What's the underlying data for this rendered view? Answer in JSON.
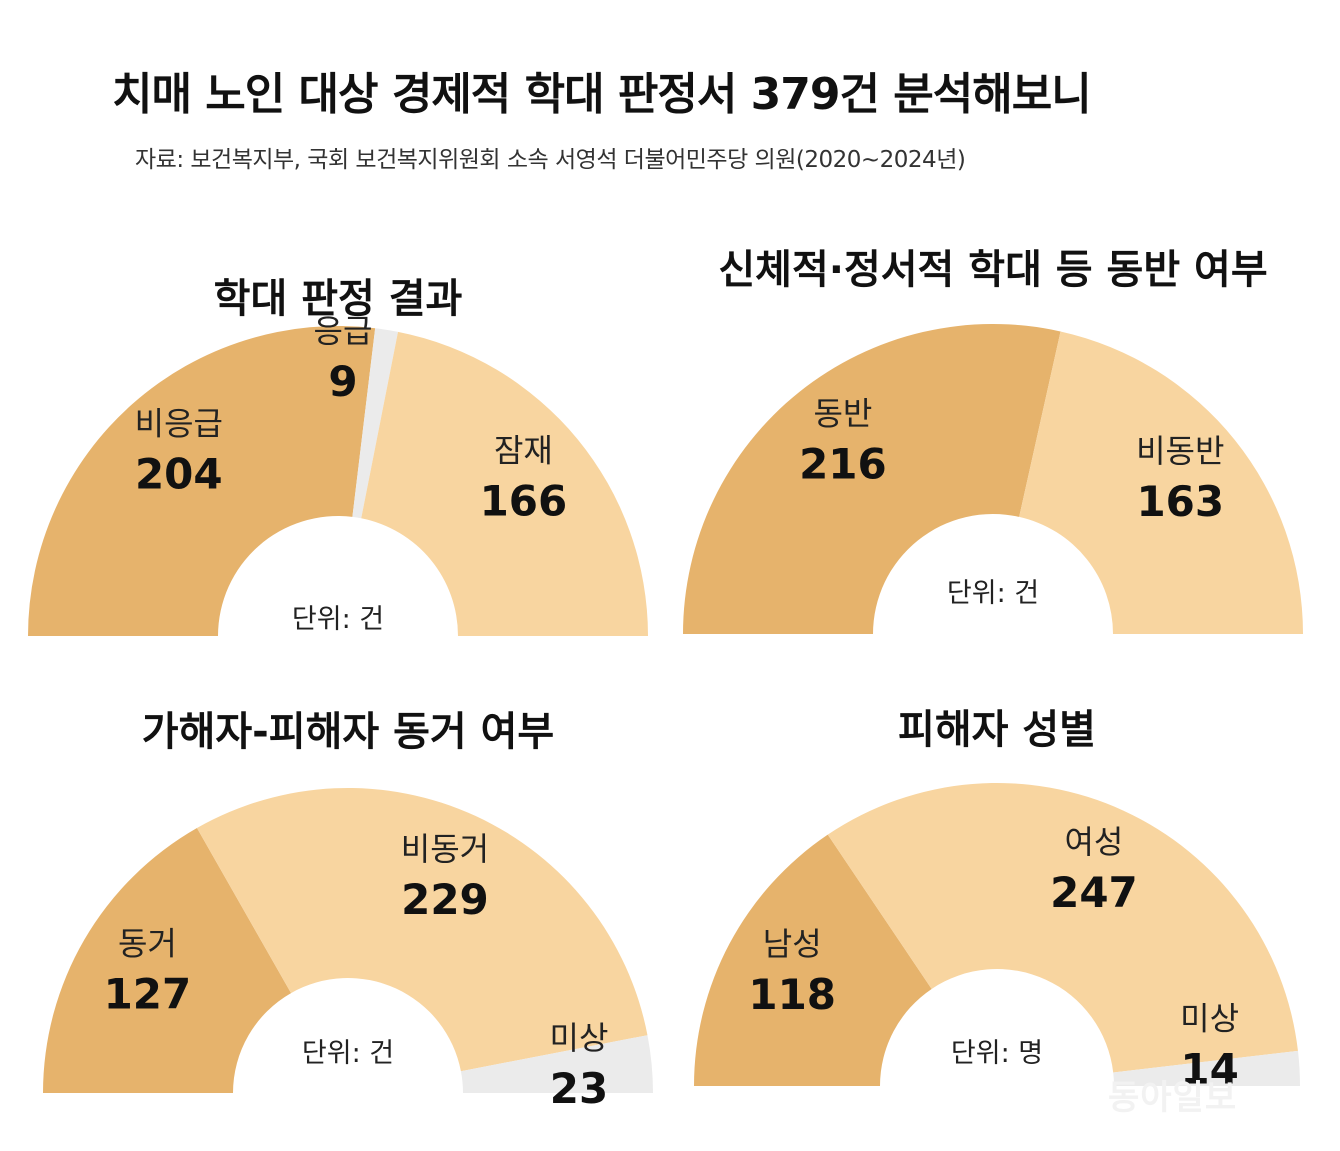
{
  "title": "치매 노인 대상 경제적 학대 판정서 379건 분석해보니",
  "source": "자료: 보건복지부, 국회 보건복지위원회 소속 서영석 더불어민주당 의원(2020∼2024년)",
  "watermark": "동아일보",
  "colors": {
    "dark": "#e6b36c",
    "light": "#f8d5a0",
    "gray": "#ebebeb"
  },
  "chart_data": [
    {
      "type": "pie",
      "title": "학대 판정 결과",
      "unit_label": "단위: 건",
      "slices": [
        {
          "label": "비응급",
          "value": 204,
          "color": "dark"
        },
        {
          "label": "응급",
          "value": 9,
          "color": "gray"
        },
        {
          "label": "잠재",
          "value": 166,
          "color": "light"
        }
      ]
    },
    {
      "type": "pie",
      "title": "신체적·정서적 학대 등 동반 여부",
      "unit_label": "단위: 건",
      "slices": [
        {
          "label": "동반",
          "value": 216,
          "color": "dark"
        },
        {
          "label": "비동반",
          "value": 163,
          "color": "light"
        }
      ]
    },
    {
      "type": "pie",
      "title": "가해자-피해자 동거 여부",
      "unit_label": "단위: 건",
      "slices": [
        {
          "label": "동거",
          "value": 127,
          "color": "dark"
        },
        {
          "label": "비동거",
          "value": 229,
          "color": "light"
        },
        {
          "label": "미상",
          "value": 23,
          "color": "gray"
        }
      ]
    },
    {
      "type": "pie",
      "title": "피해자 성별",
      "unit_label": "단위: 명",
      "slices": [
        {
          "label": "남성",
          "value": 118,
          "color": "dark"
        },
        {
          "label": "여성",
          "value": 247,
          "color": "light"
        },
        {
          "label": "미상",
          "value": 14,
          "color": "gray"
        }
      ]
    }
  ]
}
